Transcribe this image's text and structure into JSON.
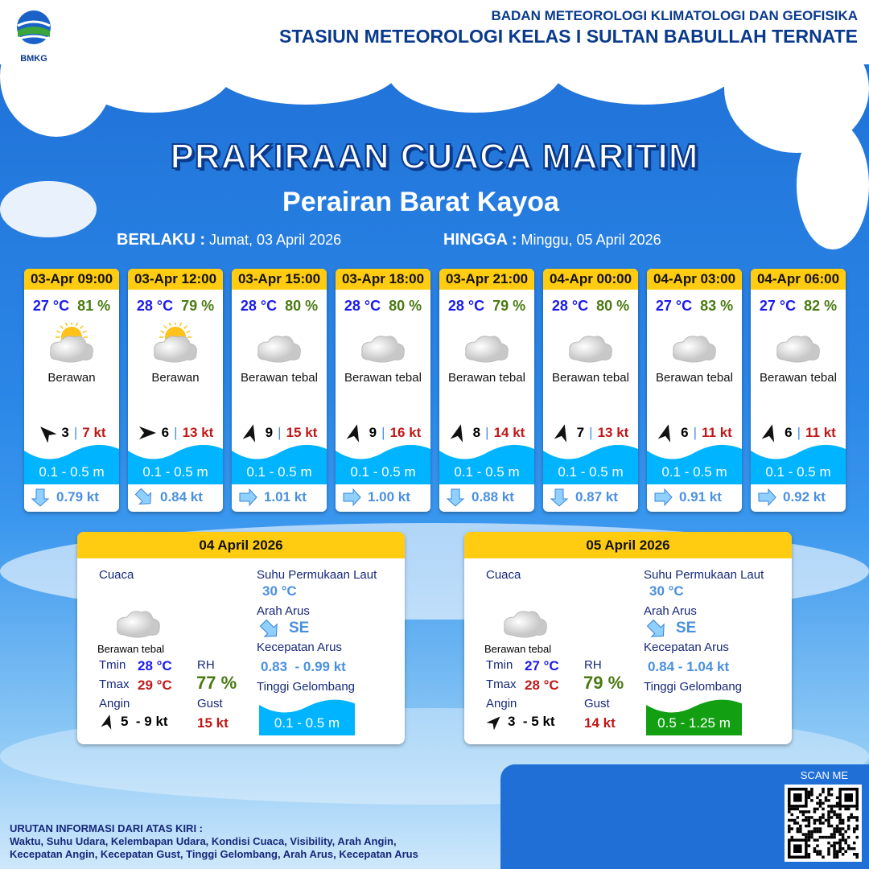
{
  "header": {
    "org": "BADAN METEOROLOGI KLIMATOLOGI DAN GEOFISIKA",
    "station": "STASIUN METEOROLOGI KELAS I SULTAN BABULLAH TERNATE",
    "logo_text": "BMKG"
  },
  "title": "PRAKIRAAN CUACA MARITIM",
  "subtitle": "Perairan Barat Kayoa",
  "validity": {
    "from_label": "BERLAKU :",
    "from": "Jumat, 03 April 2026",
    "to_label": "HINGGA :",
    "to": "Minggu, 05 April 2026"
  },
  "colors": {
    "header_yellow": "#ffcc11",
    "wave_blue": "#00b4ff",
    "wave_green": "#12a012",
    "temp": "#1a1aee",
    "rh": "#4a7a12",
    "gust": "#c01818",
    "current": "#4a90e0"
  },
  "forecasts": [
    {
      "time": "03-Apr 09:00",
      "temp": "27 °C",
      "rh": "81 %",
      "icon": "partly-cloudy-icon",
      "desc": "Berawan",
      "wind_dir_deg": 315,
      "wind": "3",
      "gust": "7 kt",
      "wave": "0.1 - 0.5 m",
      "cur_dir_deg": 180,
      "cur": "0.79 kt"
    },
    {
      "time": "03-Apr 12:00",
      "temp": "28 °C",
      "rh": "79 %",
      "icon": "partly-cloudy-icon",
      "desc": "Berawan",
      "wind_dir_deg": 90,
      "wind": "6",
      "gust": "13 kt",
      "wave": "0.1 - 0.5 m",
      "cur_dir_deg": 135,
      "cur": "0.84 kt"
    },
    {
      "time": "03-Apr 15:00",
      "temp": "28 °C",
      "rh": "80 %",
      "icon": "cloudy-icon",
      "desc": "Berawan tebal",
      "wind_dir_deg": 15,
      "wind": "9",
      "gust": "15 kt",
      "wave": "0.1 - 0.5 m",
      "cur_dir_deg": 90,
      "cur": "1.01 kt"
    },
    {
      "time": "03-Apr 18:00",
      "temp": "28 °C",
      "rh": "80 %",
      "icon": "cloudy-icon",
      "desc": "Berawan tebal",
      "wind_dir_deg": 15,
      "wind": "9",
      "gust": "16 kt",
      "wave": "0.1 - 0.5 m",
      "cur_dir_deg": 90,
      "cur": "1.00 kt"
    },
    {
      "time": "03-Apr 21:00",
      "temp": "28 °C",
      "rh": "79 %",
      "icon": "cloudy-icon",
      "desc": "Berawan tebal",
      "wind_dir_deg": 15,
      "wind": "8",
      "gust": "14 kt",
      "wave": "0.1 - 0.5 m",
      "cur_dir_deg": 180,
      "cur": "0.88 kt"
    },
    {
      "time": "04-Apr 00:00",
      "temp": "28 °C",
      "rh": "80 %",
      "icon": "cloudy-icon",
      "desc": "Berawan tebal",
      "wind_dir_deg": 15,
      "wind": "7",
      "gust": "13 kt",
      "wave": "0.1 - 0.5 m",
      "cur_dir_deg": 180,
      "cur": "0.87 kt"
    },
    {
      "time": "04-Apr 03:00",
      "temp": "27 °C",
      "rh": "83 %",
      "icon": "cloudy-icon",
      "desc": "Berawan tebal",
      "wind_dir_deg": 15,
      "wind": "6",
      "gust": "11 kt",
      "wave": "0.1 - 0.5 m",
      "cur_dir_deg": 90,
      "cur": "0.91 kt"
    },
    {
      "time": "04-Apr 06:00",
      "temp": "27 °C",
      "rh": "82 %",
      "icon": "cloudy-icon",
      "desc": "Berawan tebal",
      "wind_dir_deg": 15,
      "wind": "6",
      "gust": "11 kt",
      "wave": "0.1 - 0.5 m",
      "cur_dir_deg": 90,
      "cur": "0.92 kt"
    }
  ],
  "labels": {
    "cuaca": "Cuaca",
    "tmin": "Tmin",
    "tmax": "Tmax",
    "rh": "RH",
    "angin": "Angin",
    "gust": "Gust",
    "sst": "Suhu Permukaan Laut",
    "arah": "Arah Arus",
    "kec": "Kecepatan Arus",
    "tinggi": "Tinggi Gelombang"
  },
  "daily": [
    {
      "date": "04 April 2026",
      "desc": "Berawan tebal",
      "tmin": "28 °C",
      "tmax": "29 °C",
      "rh": "77 %",
      "wind": "5  - 9 kt",
      "wind_dir_deg": 15,
      "gust": "15 kt",
      "sst": "30 °C",
      "cur_dir": "SE",
      "cur": "0.83  - 0.99 kt",
      "wave": "0.1 - 0.5 m",
      "wave_color": "#00b4ff"
    },
    {
      "date": "05 April 2026",
      "desc": "Berawan tebal",
      "tmin": "27 °C",
      "tmax": "28 °C",
      "rh": "79 %",
      "wind": "3  - 5 kt",
      "wind_dir_deg": 45,
      "gust": "14 kt",
      "sst": "30 °C",
      "cur_dir": "SE",
      "cur": "0.84 - 1.04 kt",
      "wave": "0.5 - 1.25 m",
      "wave_color": "#12a012"
    }
  ],
  "legend": {
    "title": "URUTAN INFORMASI DARI ATAS KIRI :",
    "line1": "Waktu, Suhu Udara, Kelembapan Udara, Kondisi Cuaca, Visibility, Arah Angin,",
    "line2": "Kecepatan Angin, Kecepatan Gust, Tinggi Gelombang, Arah Arus, Kecepatan Arus"
  },
  "scan_me": "SCAN ME"
}
